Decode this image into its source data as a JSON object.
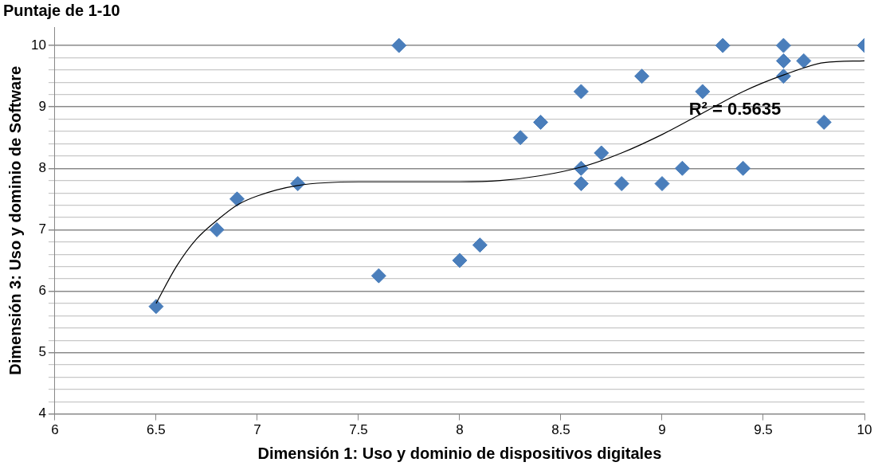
{
  "chart_data": {
    "type": "scatter",
    "title": "Puntaje de 1-10",
    "xlabel": "Dimensión 1: Uso y dominio de dispositivos digitales",
    "ylabel": "Dimensión 3: Uso y dominio de Software",
    "xlim": [
      6,
      10
    ],
    "xticks": [
      6,
      6.5,
      7,
      7.5,
      8,
      8.5,
      9,
      9.5,
      10
    ],
    "ylim": [
      4,
      10.3
    ],
    "yticks": [
      4,
      {
        "value": 4.2,
        "label": null
      },
      {
        "value": 4.4,
        "label": null
      },
      {
        "value": 4.6,
        "label": null
      },
      {
        "value": 4.8,
        "label": null
      },
      5,
      {
        "value": 5.2,
        "label": null
      },
      {
        "value": 5.4,
        "label": null
      },
      {
        "value": 5.6,
        "label": null
      },
      {
        "value": 5.8,
        "label": null
      },
      6,
      {
        "value": 6.2,
        "label": null
      },
      {
        "value": 6.4,
        "label": null
      },
      {
        "value": 6.6,
        "label": null
      },
      {
        "value": 6.8,
        "label": null
      },
      7,
      {
        "value": 7.2,
        "label": null
      },
      {
        "value": 7.4,
        "label": null
      },
      {
        "value": 7.6,
        "label": null
      },
      {
        "value": 7.8,
        "label": null
      },
      8,
      {
        "value": 8.2,
        "label": null
      },
      {
        "value": 8.4,
        "label": null
      },
      {
        "value": 8.6,
        "label": null
      },
      {
        "value": 8.8,
        "label": null
      },
      9,
      {
        "value": 9.2,
        "label": null
      },
      {
        "value": 9.4,
        "label": null
      },
      {
        "value": 9.6,
        "label": null
      },
      {
        "value": 9.8,
        "label": null
      },
      10
    ],
    "grid": "y",
    "legend": false,
    "series": [
      {
        "color": "#4a7ebb",
        "marker": "diamond",
        "x": [
          6.5,
          6.8,
          6.9,
          7.2,
          7.6,
          7.7,
          8.0,
          8.1,
          8.3,
          8.4,
          8.6,
          8.6,
          8.6,
          8.7,
          8.8,
          8.9,
          9.0,
          9.1,
          9.2,
          9.3,
          9.4,
          9.6,
          9.6,
          9.6,
          9.7,
          9.8,
          10
        ],
        "values": [
          5.75,
          7,
          7.5,
          7.75,
          6.25,
          10,
          6.5,
          6.75,
          8.5,
          8.75,
          9.25,
          8,
          7.75,
          8.25,
          7.75,
          9.5,
          7.75,
          8,
          9.25,
          10,
          8,
          10,
          9.75,
          9.5,
          9.75,
          8.75,
          10
        ]
      },
      {
        "type": "line",
        "marker": "none",
        "color": "#000000",
        "x": [
          6.5,
          6.6,
          6.7,
          6.8,
          6.9,
          7.0,
          7.2,
          7.5,
          7.8,
          8.0,
          8.2,
          8.4,
          8.6,
          8.8,
          9.0,
          9.2,
          9.4,
          9.6,
          9.8,
          10
        ],
        "values": [
          5.8,
          6.4,
          6.85,
          7.15,
          7.4,
          7.55,
          7.72,
          7.78,
          7.78,
          7.78,
          7.8,
          7.88,
          8.02,
          8.25,
          8.55,
          8.9,
          9.25,
          9.52,
          9.72,
          9.75
        ]
      }
    ],
    "annotations": [
      "R² = 0.5635"
    ]
  }
}
